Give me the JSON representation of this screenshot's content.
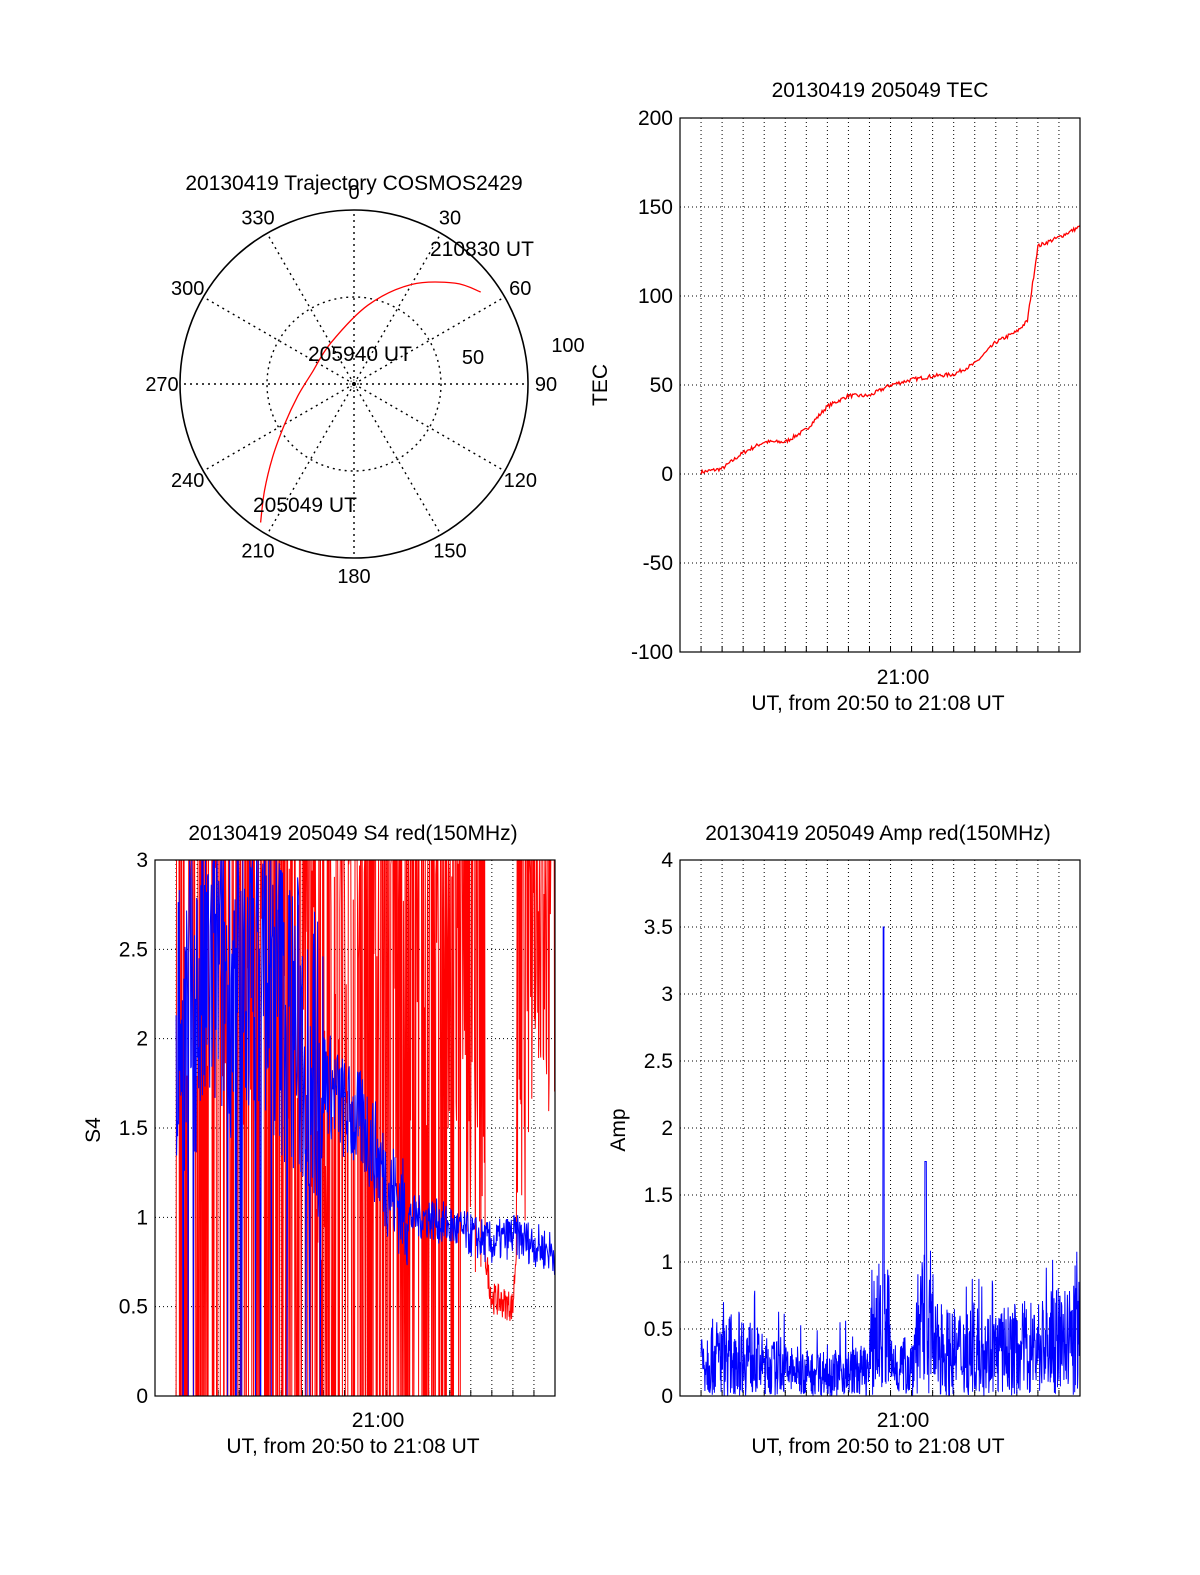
{
  "chart_data": [
    {
      "type": "polar",
      "title": "20130419 Trajectory COSMOS2429",
      "azimuth_ticks": [
        "0",
        "30",
        "60",
        "90",
        "120",
        "150",
        "180",
        "210",
        "240",
        "270",
        "300",
        "330"
      ],
      "radial_ticks": [
        "50",
        "100"
      ],
      "radial_range": [
        0,
        100
      ],
      "grid": true,
      "series": [
        {
          "color": "#ff0000",
          "azimuth_deg": [
            214,
            220,
            228,
            240,
            258,
            285,
            330,
            10,
            30,
            45,
            54
          ],
          "radius": [
            96,
            80,
            63,
            46,
            33,
            25,
            27,
            46,
            66,
            82,
            90
          ]
        }
      ],
      "annotations": [
        {
          "text": "210830 UT",
          "point": "end"
        },
        {
          "text": "205940 UT",
          "point": "middle"
        },
        {
          "text": "205049 UT",
          "point": "start"
        }
      ]
    },
    {
      "type": "line",
      "title": "20130419 205049 TEC",
      "xlabel": "UT, from 20:50 to 21:08 UT",
      "ylabel": "TEC",
      "xlim": [
        "20:49",
        "21:08"
      ],
      "ylim": [
        -100,
        200
      ],
      "x_tick_labels": [
        "21:00"
      ],
      "y_tick_labels": [
        "-100",
        "-50",
        "0",
        "50",
        "100",
        "150",
        "200"
      ],
      "grid": true,
      "series": [
        {
          "color": "#ff0000",
          "x": [
            "20:50",
            "20:51",
            "20:52",
            "20:53",
            "20:54",
            "20:55",
            "20:56",
            "20:57",
            "20:58",
            "20:59",
            "21:00",
            "21:01",
            "21:02",
            "21:03",
            "21:04",
            "21:05",
            "21:05:30",
            "21:06",
            "21:07",
            "21:08"
          ],
          "values": [
            1,
            3,
            12,
            18,
            18,
            25,
            38,
            44,
            44,
            50,
            53,
            55,
            56,
            62,
            74,
            80,
            86,
            128,
            133,
            139
          ]
        }
      ]
    },
    {
      "type": "line",
      "title": "20130419 205049 S4 red(150MHz)",
      "xlabel": "UT, from 20:50 to 21:08 UT",
      "ylabel": "S4",
      "xlim": [
        "20:49",
        "21:08"
      ],
      "ylim": [
        0,
        3
      ],
      "x_tick_labels": [
        "21:00"
      ],
      "y_tick_labels": [
        "0",
        "0.5",
        "1",
        "1.5",
        "2",
        "2.5",
        "3"
      ],
      "grid": true,
      "series": [
        {
          "color": "#ff0000",
          "x": [
            "20:50",
            "20:51",
            "20:52",
            "20:53",
            "20:54",
            "20:55",
            "20:56",
            "20:57",
            "20:58",
            "20:59",
            "21:00",
            "21:01",
            "21:02",
            "21:03",
            "21:04",
            "21:05",
            "21:06",
            "21:07",
            "21:08"
          ],
          "values": [
            2.6,
            2.1,
            2.4,
            1.9,
            2.6,
            2.2,
            2.5,
            1.6,
            2.3,
            2.6,
            2.2,
            1.7,
            2.4,
            2.5,
            1.3,
            0.55,
            0.5,
            2.6,
            2.0
          ]
        },
        {
          "color": "#0000ff",
          "x": [
            "20:50",
            "20:51",
            "20:52",
            "20:53",
            "20:54",
            "20:55",
            "20:56",
            "20:57",
            "20:58",
            "20:59",
            "21:00",
            "21:01",
            "21:02",
            "21:03",
            "21:04",
            "21:05",
            "21:06",
            "21:07",
            "21:08"
          ],
          "values": [
            2.1,
            2.2,
            2.4,
            2.3,
            2.5,
            2.2,
            2.0,
            1.8,
            1.6,
            1.5,
            1.2,
            1.0,
            1.0,
            0.95,
            0.9,
            0.85,
            0.9,
            0.85,
            0.8
          ]
        }
      ]
    },
    {
      "type": "line",
      "title": "20130419 205049 Amp red(150MHz)",
      "xlabel": "UT, from 20:50 to 21:08 UT",
      "ylabel": "Amp",
      "xlim": [
        "20:49",
        "21:08"
      ],
      "ylim": [
        0,
        4
      ],
      "x_tick_labels": [
        "21:00"
      ],
      "y_tick_labels": [
        "0",
        "0.5",
        "1",
        "1.5",
        "2",
        "2.5",
        "3",
        "3.5",
        "4"
      ],
      "grid": true,
      "series": [
        {
          "color": "#0000ff",
          "x": [
            "20:50",
            "20:51",
            "20:52",
            "20:53",
            "20:54",
            "20:55",
            "20:56",
            "20:57",
            "20:58",
            "20:58:40",
            "20:59",
            "21:00",
            "21:00:40",
            "21:01",
            "21:02",
            "21:03",
            "21:04",
            "21:05",
            "21:06",
            "21:07",
            "21:08"
          ],
          "values": [
            0.55,
            0.6,
            0.65,
            0.45,
            0.4,
            0.35,
            0.35,
            0.35,
            0.4,
            3.5,
            0.45,
            0.45,
            1.75,
            0.7,
            0.65,
            0.7,
            0.65,
            0.7,
            0.75,
            0.8,
            0.85
          ]
        }
      ]
    }
  ]
}
